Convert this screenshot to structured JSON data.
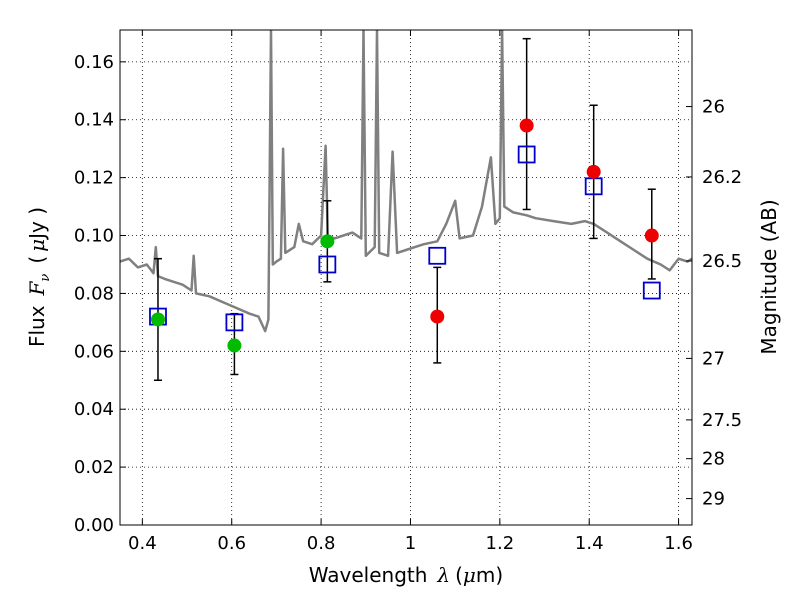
{
  "chart_data": {
    "type": "scatter",
    "xlabel_prefix": "Wavelength",
    "xlabel_symbol": "λ",
    "xlabel_unit_pre": "(",
    "xlabel_unit_mu": "μ",
    "xlabel_unit_post": "m)",
    "ylabel_prefix": "Flux",
    "ylabel_symbol_main": "F",
    "ylabel_symbol_sub": "ν",
    "ylabel_unit_pre": "(",
    "ylabel_unit_mu": "μ",
    "ylabel_unit_post": "Jy )",
    "y2label": "Magnitude (AB)",
    "xlim": [
      0.35,
      1.63
    ],
    "ylim": [
      0.0,
      0.171
    ],
    "xticks": [
      0.4,
      0.6,
      0.8,
      1.0,
      1.2,
      1.4,
      1.6
    ],
    "xtick_labels": [
      "0.4",
      "0.6",
      "0.8",
      "1",
      "1.2",
      "1.4",
      "1.6"
    ],
    "yticks": [
      0.0,
      0.02,
      0.04,
      0.06,
      0.08,
      0.1,
      0.12,
      0.14,
      0.16
    ],
    "ytick_labels": [
      "0.00",
      "0.02",
      "0.04",
      "0.06",
      "0.08",
      "0.10",
      "0.12",
      "0.14",
      "0.16"
    ],
    "y2ticks": [
      26,
      26.2,
      26.5,
      27,
      27.5,
      28,
      29
    ],
    "y2tick_labels": [
      "26",
      "26.2",
      "26.5",
      "27",
      "27.5",
      "28",
      "29"
    ],
    "grid": true,
    "colors": {
      "template": "#808080",
      "green_points": "#00bb00",
      "red_points": "#ee0000",
      "model_squares": "#0000cc",
      "errorbars": "#000000"
    },
    "series": [
      {
        "marker": "circle-green",
        "points": [
          {
            "x": 0.435,
            "y": 0.071,
            "ylo": 0.05,
            "yhi": 0.092
          },
          {
            "x": 0.606,
            "y": 0.062,
            "ylo": 0.052,
            "yhi": 0.073
          },
          {
            "x": 0.814,
            "y": 0.098,
            "ylo": 0.084,
            "yhi": 0.112
          }
        ]
      },
      {
        "marker": "circle-red",
        "points": [
          {
            "x": 1.06,
            "y": 0.072,
            "ylo": 0.056,
            "yhi": 0.089
          },
          {
            "x": 1.26,
            "y": 0.138,
            "ylo": 0.109,
            "yhi": 0.168
          },
          {
            "x": 1.41,
            "y": 0.122,
            "ylo": 0.099,
            "yhi": 0.145
          },
          {
            "x": 1.54,
            "y": 0.1,
            "ylo": 0.085,
            "yhi": 0.116
          }
        ]
      },
      {
        "marker": "square-blue",
        "points": [
          {
            "x": 0.435,
            "y": 0.072
          },
          {
            "x": 0.606,
            "y": 0.07
          },
          {
            "x": 0.814,
            "y": 0.09
          },
          {
            "x": 1.06,
            "y": 0.093
          },
          {
            "x": 1.26,
            "y": 0.128
          },
          {
            "x": 1.41,
            "y": 0.117
          },
          {
            "x": 1.54,
            "y": 0.081
          }
        ]
      },
      {
        "marker": "line-gray",
        "points": [
          [
            0.35,
            0.091
          ],
          [
            0.37,
            0.092
          ],
          [
            0.39,
            0.089
          ],
          [
            0.41,
            0.09
          ],
          [
            0.425,
            0.087
          ],
          [
            0.43,
            0.096
          ],
          [
            0.435,
            0.086
          ],
          [
            0.45,
            0.085
          ],
          [
            0.47,
            0.084
          ],
          [
            0.49,
            0.083
          ],
          [
            0.51,
            0.081
          ],
          [
            0.515,
            0.093
          ],
          [
            0.52,
            0.08
          ],
          [
            0.55,
            0.079
          ],
          [
            0.58,
            0.077
          ],
          [
            0.61,
            0.075
          ],
          [
            0.64,
            0.073
          ],
          [
            0.66,
            0.072
          ],
          [
            0.675,
            0.067
          ],
          [
            0.682,
            0.071
          ],
          [
            0.688,
            0.171
          ],
          [
            0.692,
            0.09
          ],
          [
            0.7,
            0.091
          ],
          [
            0.71,
            0.092
          ],
          [
            0.715,
            0.13
          ],
          [
            0.72,
            0.094
          ],
          [
            0.74,
            0.096
          ],
          [
            0.75,
            0.104
          ],
          [
            0.76,
            0.098
          ],
          [
            0.78,
            0.097
          ],
          [
            0.8,
            0.1
          ],
          [
            0.81,
            0.131
          ],
          [
            0.815,
            0.1
          ],
          [
            0.83,
            0.099
          ],
          [
            0.85,
            0.1
          ],
          [
            0.87,
            0.101
          ],
          [
            0.89,
            0.099
          ],
          [
            0.895,
            0.171
          ],
          [
            0.9,
            0.093
          ],
          [
            0.92,
            0.096
          ],
          [
            0.925,
            0.171
          ],
          [
            0.93,
            0.094
          ],
          [
            0.95,
            0.093
          ],
          [
            0.96,
            0.129
          ],
          [
            0.97,
            0.094
          ],
          [
            0.99,
            0.095
          ],
          [
            1.01,
            0.096
          ],
          [
            1.03,
            0.097
          ],
          [
            1.06,
            0.098
          ],
          [
            1.08,
            0.104
          ],
          [
            1.1,
            0.112
          ],
          [
            1.11,
            0.099
          ],
          [
            1.14,
            0.1
          ],
          [
            1.16,
            0.11
          ],
          [
            1.18,
            0.127
          ],
          [
            1.19,
            0.104
          ],
          [
            1.2,
            0.106
          ],
          [
            1.205,
            0.171
          ],
          [
            1.21,
            0.11
          ],
          [
            1.23,
            0.108
          ],
          [
            1.26,
            0.107
          ],
          [
            1.28,
            0.106
          ],
          [
            1.32,
            0.105
          ],
          [
            1.36,
            0.104
          ],
          [
            1.39,
            0.105
          ],
          [
            1.41,
            0.104
          ],
          [
            1.44,
            0.101
          ],
          [
            1.47,
            0.098
          ],
          [
            1.5,
            0.095
          ],
          [
            1.53,
            0.092
          ],
          [
            1.56,
            0.09
          ],
          [
            1.58,
            0.088
          ],
          [
            1.6,
            0.092
          ],
          [
            1.62,
            0.091
          ],
          [
            1.63,
            0.092
          ]
        ]
      }
    ]
  }
}
